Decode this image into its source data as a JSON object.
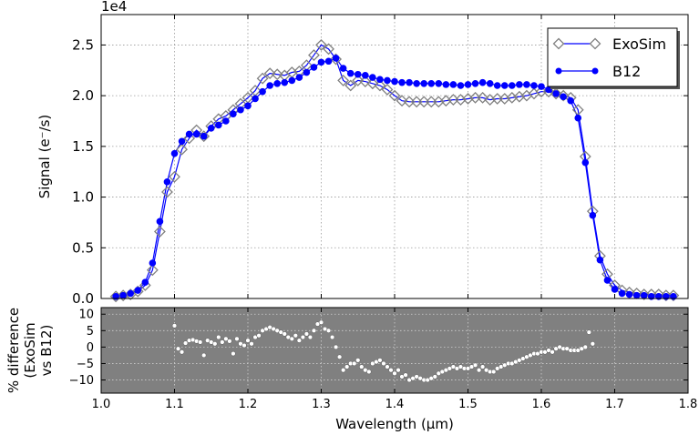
{
  "chart_data": [
    {
      "type": "scatter",
      "xlabel": "",
      "ylabel": "Signal (e⁻/s)",
      "exponent_label": "1e4",
      "xlim": [
        1.0,
        1.8
      ],
      "ylim": [
        0,
        2.8
      ],
      "xticks": [],
      "yticks": [
        "0.0",
        "0.5",
        "1.0",
        "1.5",
        "2.0",
        "2.5"
      ],
      "ytick_values": [
        0.0,
        0.5,
        1.0,
        1.5,
        2.0,
        2.5
      ],
      "grid": true,
      "legend_position": "top-right",
      "series": [
        {
          "name": "ExoSim",
          "marker": "diamond",
          "color": "#808080",
          "x": [
            1.02,
            1.03,
            1.04,
            1.05,
            1.06,
            1.07,
            1.08,
            1.09,
            1.1,
            1.11,
            1.12,
            1.13,
            1.14,
            1.15,
            1.16,
            1.17,
            1.18,
            1.19,
            1.2,
            1.21,
            1.22,
            1.23,
            1.24,
            1.25,
            1.26,
            1.27,
            1.28,
            1.29,
            1.3,
            1.31,
            1.32,
            1.33,
            1.34,
            1.35,
            1.36,
            1.37,
            1.38,
            1.39,
            1.4,
            1.41,
            1.42,
            1.43,
            1.44,
            1.45,
            1.46,
            1.47,
            1.48,
            1.49,
            1.5,
            1.51,
            1.52,
            1.53,
            1.54,
            1.55,
            1.56,
            1.57,
            1.58,
            1.59,
            1.6,
            1.61,
            1.62,
            1.63,
            1.64,
            1.65,
            1.66,
            1.67,
            1.68,
            1.69,
            1.7,
            1.71,
            1.72,
            1.73,
            1.74,
            1.75,
            1.76,
            1.77,
            1.78
          ],
          "values": [
            0.02,
            0.03,
            0.04,
            0.07,
            0.13,
            0.28,
            0.66,
            1.05,
            1.2,
            1.47,
            1.58,
            1.66,
            1.6,
            1.7,
            1.77,
            1.8,
            1.86,
            1.92,
            1.98,
            2.05,
            2.17,
            2.22,
            2.21,
            2.2,
            2.23,
            2.24,
            2.3,
            2.4,
            2.5,
            2.46,
            2.36,
            2.15,
            2.1,
            2.15,
            2.14,
            2.12,
            2.1,
            2.06,
            2.0,
            1.95,
            1.94,
            1.94,
            1.94,
            1.94,
            1.94,
            1.95,
            1.96,
            1.96,
            1.97,
            1.98,
            1.98,
            1.96,
            1.97,
            1.97,
            1.98,
            1.99,
            2.0,
            2.02,
            2.04,
            2.04,
            2.02,
            2.0,
            1.98,
            1.86,
            1.4,
            0.86,
            0.42,
            0.24,
            0.13,
            0.08,
            0.06,
            0.05,
            0.04,
            0.04,
            0.04,
            0.03,
            0.03
          ]
        },
        {
          "name": "B12",
          "marker": "circle",
          "color": "#0000ff",
          "x": [
            1.02,
            1.03,
            1.04,
            1.05,
            1.06,
            1.07,
            1.08,
            1.09,
            1.1,
            1.11,
            1.12,
            1.13,
            1.14,
            1.15,
            1.16,
            1.17,
            1.18,
            1.19,
            1.2,
            1.21,
            1.22,
            1.23,
            1.24,
            1.25,
            1.26,
            1.27,
            1.28,
            1.29,
            1.3,
            1.31,
            1.32,
            1.33,
            1.34,
            1.35,
            1.36,
            1.37,
            1.38,
            1.39,
            1.4,
            1.41,
            1.42,
            1.43,
            1.44,
            1.45,
            1.46,
            1.47,
            1.48,
            1.49,
            1.5,
            1.51,
            1.52,
            1.53,
            1.54,
            1.55,
            1.56,
            1.57,
            1.58,
            1.59,
            1.6,
            1.61,
            1.62,
            1.63,
            1.64,
            1.65,
            1.66,
            1.67,
            1.68,
            1.69,
            1.7,
            1.71,
            1.72,
            1.73,
            1.74,
            1.75,
            1.76,
            1.77,
            1.78
          ],
          "values": [
            0.02,
            0.03,
            0.05,
            0.08,
            0.16,
            0.35,
            0.76,
            1.15,
            1.43,
            1.55,
            1.62,
            1.62,
            1.6,
            1.68,
            1.71,
            1.75,
            1.82,
            1.86,
            1.9,
            1.97,
            2.04,
            2.1,
            2.12,
            2.13,
            2.15,
            2.18,
            2.23,
            2.28,
            2.33,
            2.34,
            2.37,
            2.27,
            2.22,
            2.21,
            2.2,
            2.18,
            2.16,
            2.15,
            2.14,
            2.13,
            2.13,
            2.12,
            2.12,
            2.12,
            2.12,
            2.11,
            2.11,
            2.1,
            2.11,
            2.12,
            2.13,
            2.12,
            2.1,
            2.1,
            2.1,
            2.11,
            2.11,
            2.1,
            2.09,
            2.06,
            2.02,
            1.99,
            1.95,
            1.78,
            1.34,
            0.82,
            0.38,
            0.18,
            0.09,
            0.05,
            0.04,
            0.03,
            0.03,
            0.02,
            0.02,
            0.02,
            0.02
          ]
        }
      ]
    },
    {
      "type": "scatter",
      "xlabel": "Wavelength (μm)",
      "ylabel_lines": [
        "% difference",
        "(ExoSim",
        "vs B12)"
      ],
      "xlim": [
        1.0,
        1.8
      ],
      "ylim": [
        -14,
        12
      ],
      "xticks": [
        "1.0",
        "1.1",
        "1.2",
        "1.3",
        "1.4",
        "1.5",
        "1.6",
        "1.7",
        "1.8"
      ],
      "xtick_values": [
        1.0,
        1.1,
        1.2,
        1.3,
        1.4,
        1.5,
        1.6,
        1.7,
        1.8
      ],
      "yticks": [
        "10",
        "5",
        "0",
        "−5",
        "−10"
      ],
      "ytick_values": [
        10,
        5,
        0,
        -5,
        -10
      ],
      "grid": true,
      "background": "#808080",
      "series": [
        {
          "marker": "circle",
          "color": "#ffffff",
          "x": [
            1.1,
            1.105,
            1.11,
            1.115,
            1.12,
            1.125,
            1.13,
            1.135,
            1.14,
            1.145,
            1.15,
            1.155,
            1.16,
            1.165,
            1.17,
            1.175,
            1.18,
            1.185,
            1.19,
            1.195,
            1.2,
            1.205,
            1.21,
            1.215,
            1.22,
            1.225,
            1.23,
            1.235,
            1.24,
            1.245,
            1.25,
            1.255,
            1.26,
            1.265,
            1.27,
            1.275,
            1.28,
            1.285,
            1.29,
            1.295,
            1.3,
            1.305,
            1.31,
            1.315,
            1.32,
            1.325,
            1.33,
            1.335,
            1.34,
            1.345,
            1.35,
            1.355,
            1.36,
            1.365,
            1.37,
            1.375,
            1.38,
            1.385,
            1.39,
            1.395,
            1.4,
            1.405,
            1.41,
            1.415,
            1.42,
            1.425,
            1.43,
            1.435,
            1.44,
            1.445,
            1.45,
            1.455,
            1.46,
            1.465,
            1.47,
            1.475,
            1.48,
            1.485,
            1.49,
            1.495,
            1.5,
            1.505,
            1.51,
            1.515,
            1.52,
            1.525,
            1.53,
            1.535,
            1.54,
            1.545,
            1.55,
            1.555,
            1.56,
            1.565,
            1.57,
            1.575,
            1.58,
            1.585,
            1.59,
            1.595,
            1.6,
            1.605,
            1.61,
            1.615,
            1.62,
            1.625,
            1.63,
            1.635,
            1.64,
            1.645,
            1.65,
            1.655,
            1.66,
            1.665,
            1.67
          ],
          "values": [
            6.5,
            -0.5,
            -1.5,
            1.2,
            2.0,
            2.2,
            1.8,
            1.5,
            -2.5,
            2.0,
            1.5,
            1.0,
            3.0,
            1.5,
            2.5,
            1.8,
            -2.0,
            2.5,
            1.0,
            0.5,
            2.0,
            1.0,
            3.0,
            3.5,
            5.0,
            5.5,
            6.0,
            5.5,
            5.0,
            4.5,
            4.0,
            3.0,
            2.5,
            3.5,
            2.0,
            3.0,
            4.0,
            3.0,
            5.0,
            7.0,
            7.5,
            5.5,
            5.0,
            3.0,
            0.0,
            -3.0,
            -7.0,
            -6.0,
            -5.0,
            -5.0,
            -4.0,
            -6.0,
            -7.0,
            -7.5,
            -5.0,
            -4.5,
            -4.0,
            -5.0,
            -6.0,
            -7.0,
            -8.0,
            -7.0,
            -9.0,
            -8.5,
            -10.0,
            -9.5,
            -9.0,
            -9.5,
            -10.0,
            -10.0,
            -9.5,
            -9.0,
            -8.0,
            -7.5,
            -7.0,
            -6.5,
            -6.0,
            -6.5,
            -6.0,
            -6.5,
            -6.5,
            -6.0,
            -5.5,
            -7.0,
            -6.0,
            -7.0,
            -7.5,
            -7.5,
            -6.5,
            -6.0,
            -5.5,
            -5.0,
            -5.0,
            -4.5,
            -4.0,
            -3.5,
            -3.0,
            -2.5,
            -2.0,
            -2.0,
            -1.5,
            -1.5,
            -1.0,
            -1.5,
            -0.5,
            0.0,
            -0.5,
            -0.5,
            -1.0,
            -1.0,
            -1.0,
            -0.5,
            0.0,
            4.5,
            1.0
          ]
        }
      ]
    }
  ]
}
